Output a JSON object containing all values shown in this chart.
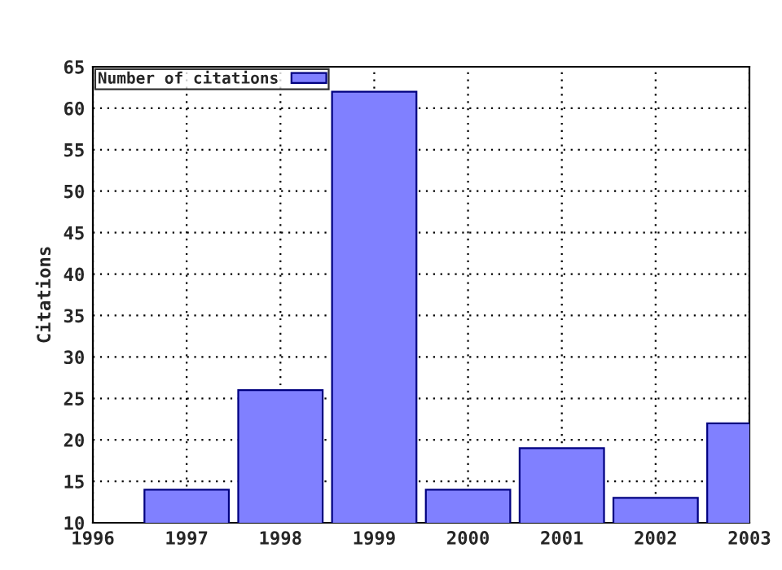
{
  "chart_data": {
    "type": "bar",
    "ylabel": "Citations",
    "x": [
      1997,
      1998,
      1999,
      2000,
      2001,
      2002,
      2003
    ],
    "series": [
      {
        "name": "Number of citations",
        "color": "#8080ff",
        "values": [
          14,
          26,
          62,
          14,
          19,
          13,
          22
        ]
      }
    ],
    "xlim": [
      1996,
      2003
    ],
    "xticks": [
      1996,
      1997,
      1998,
      1999,
      2000,
      2001,
      2002,
      2003
    ],
    "ylim": [
      10,
      65
    ],
    "yticks": [
      10,
      15,
      20,
      25,
      30,
      35,
      40,
      45,
      50,
      55,
      60,
      65
    ],
    "grid": true,
    "legend": "top left"
  }
}
